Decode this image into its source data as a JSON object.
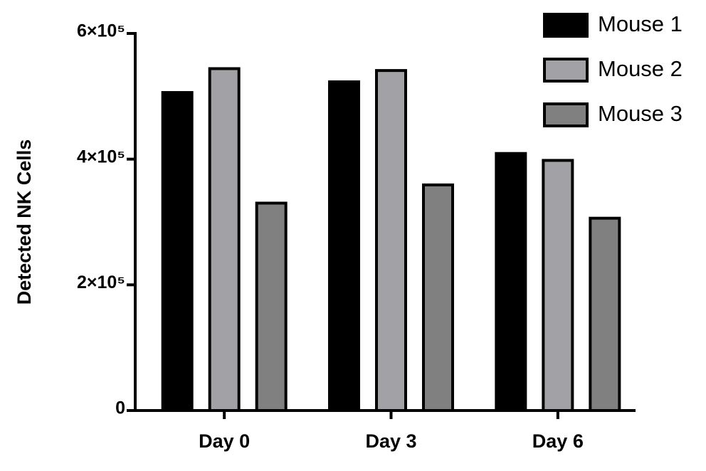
{
  "chart_data": {
    "type": "bar",
    "y_label": "Detected NK Cells",
    "categories": [
      "Day 0",
      "Day 3",
      "Day 6"
    ],
    "series": [
      {
        "name": "Mouse 1",
        "color": "#000000",
        "values": [
          506000,
          523000,
          409000
        ]
      },
      {
        "name": "Mouse 2",
        "color": "#a2a2a6",
        "values": [
          544000,
          541000,
          398000
        ]
      },
      {
        "name": "Mouse 3",
        "color": "#808080",
        "values": [
          330000,
          359000,
          306000
        ]
      }
    ],
    "ylim": [
      0,
      600000
    ],
    "yticks": [
      0,
      {
        "value": 200000,
        "label": "2×10⁵"
      },
      {
        "value": 400000,
        "label": "4×10⁵"
      },
      {
        "value": 600000,
        "label": "6×10⁵"
      }
    ],
    "legend": "top-right"
  }
}
